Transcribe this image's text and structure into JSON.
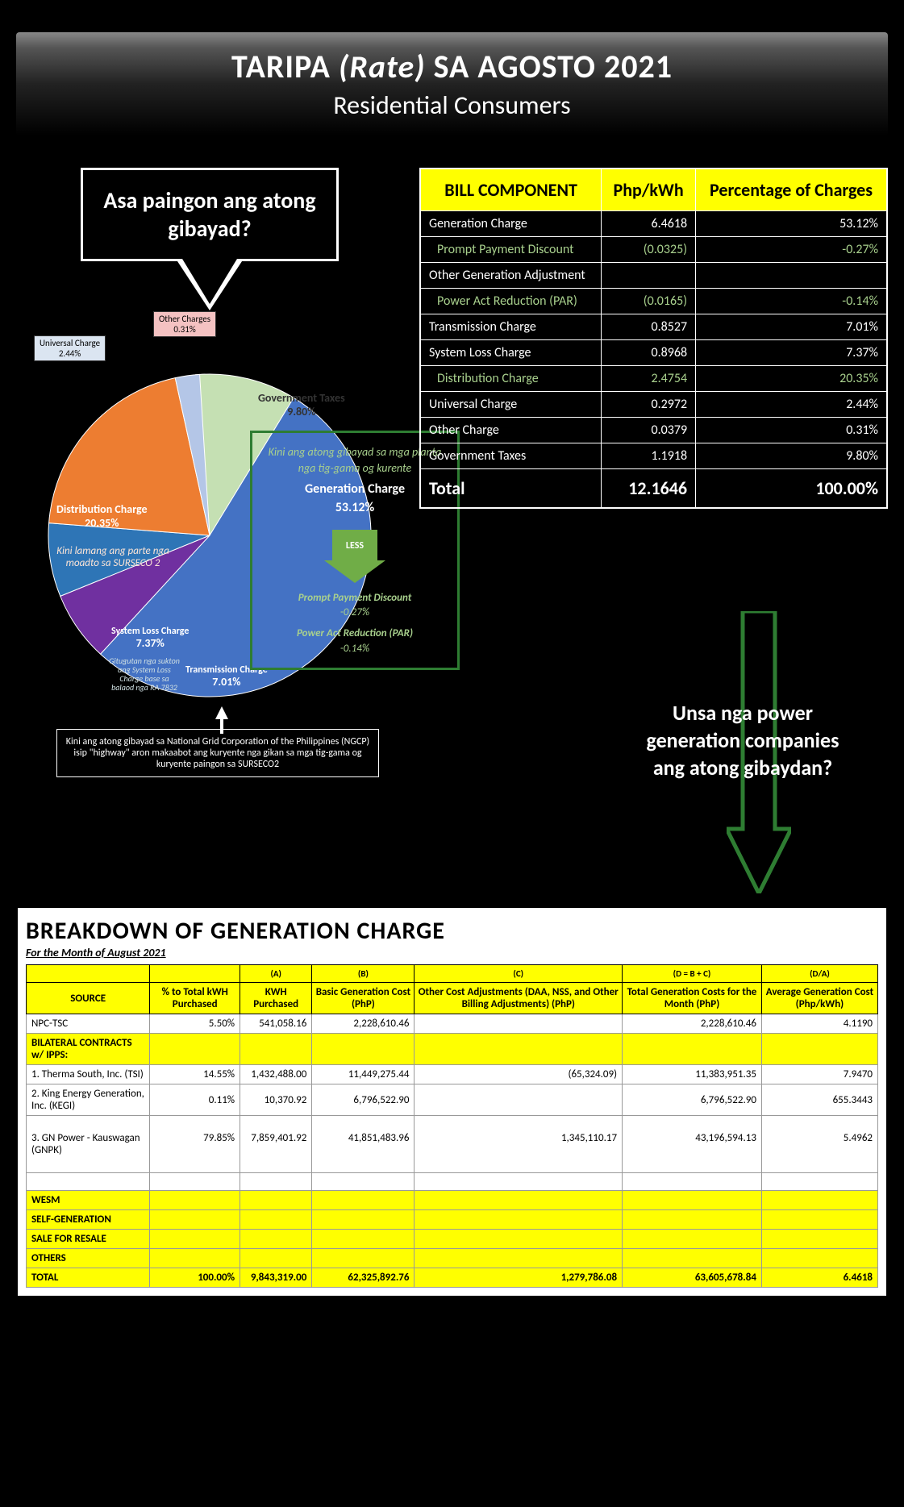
{
  "header": {
    "title_pre": "TARIPA ",
    "title_em": "(Rate)",
    "title_post": " SA AGOSTO 2021",
    "subtitle": "Residential Consumers"
  },
  "callout1": "Asa paingon ang atong gibayad?",
  "billComponents": {
    "headers": [
      "BILL COMPONENT",
      "Php/kWh",
      "Percentage of Charges"
    ],
    "rows": [
      {
        "n": "Generation Charge",
        "v": "6.4618",
        "p": "53.12%",
        "cls": ""
      },
      {
        "n": "Prompt Payment Discount",
        "v": "(0.0325)",
        "p": "-0.27%",
        "cls": "green"
      },
      {
        "n": "Other Generation Adjustment",
        "v": "",
        "p": "",
        "cls": ""
      },
      {
        "n": "Power Act Reduction (PAR)",
        "v": "(0.0165)",
        "p": "-0.14%",
        "cls": "green"
      },
      {
        "n": "Transmission Charge",
        "v": "0.8527",
        "p": "7.01%",
        "cls": ""
      },
      {
        "n": "System Loss Charge",
        "v": "0.8968",
        "p": "7.37%",
        "cls": ""
      },
      {
        "n": "Distribution Charge",
        "v": "2.4754",
        "p": "20.35%",
        "cls": "green"
      },
      {
        "n": "Universal Charge",
        "v": "0.2972",
        "p": "2.44%",
        "cls": ""
      },
      {
        "n": "Other Charge",
        "v": "0.0379",
        "p": "0.31%",
        "cls": ""
      },
      {
        "n": "Government Taxes",
        "v": "1.1918",
        "p": "9.80%",
        "cls": ""
      }
    ],
    "total": {
      "n": "Total",
      "v": "12.1646",
      "p": "100.00%"
    }
  },
  "pie": {
    "colors": {
      "other": "#f4c2c2",
      "universal": "#b4c6e7",
      "gov": "#c5e0b3",
      "gen": "#4472c4",
      "trans": "#7030a0",
      "sysloss": "#2e75b6",
      "dist": "#ed7d31"
    },
    "slices": [
      {
        "name": "Generation Charge",
        "pct": 53.12,
        "color": "#4472c4"
      },
      {
        "name": "Transmission Charge",
        "pct": 7.01,
        "color": "#7030a0"
      },
      {
        "name": "System Loss Charge",
        "pct": 7.37,
        "color": "#2e75b6"
      },
      {
        "name": "Distribution Charge",
        "pct": 20.35,
        "color": "#ed7d31"
      },
      {
        "name": "Universal Charge",
        "pct": 2.44,
        "color": "#b4c6e7"
      },
      {
        "name": "Other Charges",
        "pct": 0.31,
        "color": "#f4c2c2"
      },
      {
        "name": "Government Taxes",
        "pct": 9.8,
        "color": "#c5e0b3"
      }
    ],
    "labels": {
      "other": "Other Charges",
      "other_pct": "0.31%",
      "universal": "Universal Charge",
      "universal_pct": "2.44%",
      "gov": "Government Taxes",
      "gov_pct": "9.80%",
      "dist": "Distribution Charge",
      "dist_pct": "20.35%",
      "sysloss": "System Loss Charge",
      "sysloss_pct": "7.37%",
      "trans": "Transmission Charge",
      "trans_pct": "7.01%"
    }
  },
  "genBox": {
    "note": "Kini ang atong gibayad sa mga planta nga tig-gama og kurente",
    "main": "Generation Charge",
    "main_pct": "53.12%",
    "less": "LESS",
    "d1": "Prompt Payment Discount",
    "d1v": "-0.27%",
    "d2": "Power Act Reduction (PAR)",
    "d2v": "-0.14%"
  },
  "distNote": "Kini lamang ang parte nga moadto sa SURSECO 2",
  "syslossNote": "Gitugutan nga sukton ang System Loss Charge base sa balaod nga RA 7832",
  "transCaption": "Kini ang atong gibayad sa National Grid Corporation of the Philippines (NGCP) isip \"highway\" aron makaabot ang kuryente nga gikan sa mga tig-gama og kuryente paingon sa SURSECO2",
  "callout2": "Unsa nga power generation companies ang atong gibaydan?",
  "breakdown": {
    "title": "BREAKDOWN OF GENERATION CHARGE",
    "sub": "For the Month of August 2021",
    "sup": [
      "(A)",
      "(B)",
      "(C)",
      "(D = B + C)",
      "(D/A)"
    ],
    "headers": [
      "SOURCE",
      "% to Total kWH Purchased",
      "KWH Purchased",
      "Basic Generation Cost (PhP)",
      "Other Cost Adjustments (DAA, NSS, and Other Billing Adjustments) (PhP)",
      "Total Generation Costs for the Month (PhP)",
      "Average Generation Cost (Php/kWh)"
    ],
    "rows": [
      {
        "cells": [
          "NPC-TSC",
          "5.50%",
          "541,058.16",
          "2,228,610.46",
          "",
          "2,228,610.46",
          "4.1190"
        ],
        "type": "data"
      },
      {
        "cells": [
          "BILATERAL CONTRACTS w/ IPPS:",
          "",
          "",
          "",
          "",
          "",
          ""
        ],
        "type": "sec"
      },
      {
        "cells": [
          "1. Therma South, Inc. (TSI)",
          "14.55%",
          "1,432,488.00",
          "11,449,275.44",
          "(65,324.09)",
          "11,383,951.35",
          "7.9470"
        ],
        "type": "data"
      },
      {
        "cells": [
          "2. King Energy Generation, Inc. (KEGI)",
          "0.11%",
          "10,370.92",
          "6,796,522.90",
          "",
          "6,796,522.90",
          "655.3443"
        ],
        "type": "data"
      },
      {
        "cells": [
          "3. GN Power - Kauswagan (GNPK)",
          "79.85%",
          "7,859,401.92",
          "41,851,483.96",
          "1,345,110.17",
          "43,196,594.13",
          "5.4962"
        ],
        "type": "data-tall"
      },
      {
        "cells": [
          "",
          "",
          "",
          "",
          "",
          "",
          ""
        ],
        "type": "blank"
      },
      {
        "cells": [
          "WESM",
          "",
          "",
          "",
          "",
          "",
          ""
        ],
        "type": "sec"
      },
      {
        "cells": [
          "SELF-GENERATION",
          "",
          "",
          "",
          "",
          "",
          ""
        ],
        "type": "sec"
      },
      {
        "cells": [
          "SALE FOR RESALE",
          "",
          "",
          "",
          "",
          "",
          ""
        ],
        "type": "sec"
      },
      {
        "cells": [
          "OTHERS",
          "",
          "",
          "",
          "",
          "",
          ""
        ],
        "type": "sec"
      },
      {
        "cells": [
          "TOTAL",
          "100.00%",
          "9,843,319.00",
          "62,325,892.76",
          "1,279,786.08",
          "63,605,678.84",
          "6.4618"
        ],
        "type": "tot"
      }
    ]
  }
}
